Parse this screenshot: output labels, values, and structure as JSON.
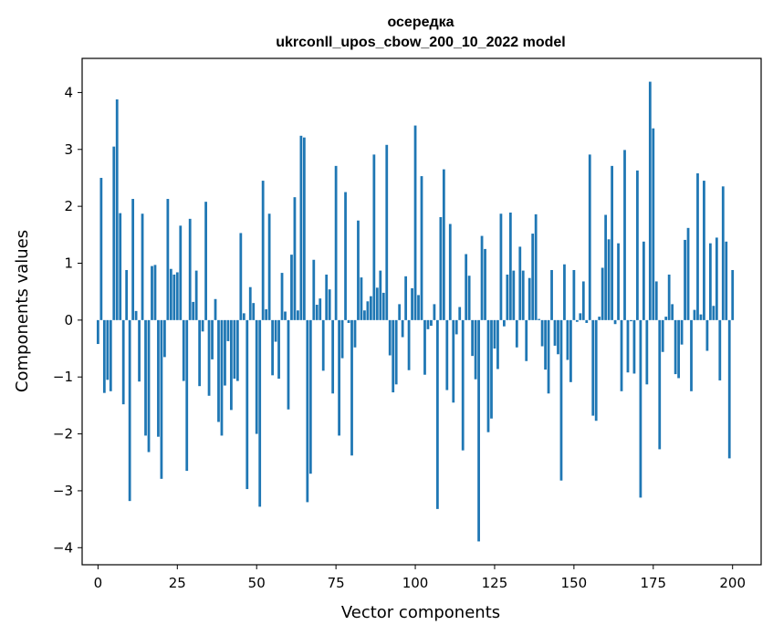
{
  "chart_data": {
    "type": "bar",
    "title": "осередка",
    "subtitle": "ukrconll_upos_cbow_200_10_2022 model",
    "xlabel": "Vector components",
    "ylabel": "Components values",
    "xlim": [
      -5,
      209
    ],
    "ylim": [
      -4.3,
      4.6
    ],
    "xticks": [
      0,
      25,
      50,
      75,
      100,
      125,
      150,
      175,
      200
    ],
    "yticks": [
      -4,
      -3,
      -2,
      -1,
      0,
      1,
      2,
      3,
      4
    ],
    "xtick_labels": [
      "0",
      "25",
      "50",
      "75",
      "100",
      "125",
      "150",
      "175",
      "200"
    ],
    "ytick_labels": [
      "−4",
      "−3",
      "−2",
      "−1",
      "0",
      "1",
      "2",
      "3",
      "4"
    ],
    "grid": false,
    "bar_color": "#1f77b4",
    "values": [
      -0.42,
      2.5,
      -1.28,
      -1.05,
      -1.25,
      3.05,
      3.88,
      1.88,
      -1.48,
      0.88,
      -3.18,
      2.13,
      0.16,
      -1.08,
      1.87,
      -2.03,
      -2.32,
      0.95,
      0.97,
      -2.05,
      -2.79,
      -0.65,
      2.13,
      0.9,
      0.8,
      0.84,
      1.66,
      -1.07,
      -2.65,
      1.78,
      0.32,
      0.87,
      -1.16,
      -0.2,
      2.08,
      -1.33,
      -0.69,
      0.37,
      -1.79,
      -2.03,
      -1.15,
      -0.37,
      -1.58,
      -1.03,
      -1.07,
      1.53,
      0.12,
      -2.97,
      0.58,
      0.3,
      -2.0,
      -3.28,
      2.45,
      0.19,
      1.87,
      -0.97,
      -0.38,
      -1.03,
      0.83,
      0.15,
      -1.57,
      1.15,
      2.16,
      0.17,
      3.24,
      3.21,
      -3.2,
      -2.7,
      1.06,
      0.27,
      0.38,
      -0.89,
      0.8,
      0.54,
      -1.29,
      2.71,
      -2.03,
      -0.67,
      2.25,
      -0.05,
      -2.38,
      -0.48,
      1.75,
      0.75,
      0.17,
      0.33,
      0.42,
      2.91,
      0.57,
      0.87,
      0.48,
      3.08,
      -0.62,
      -1.27,
      -1.13,
      0.28,
      -0.3,
      0.77,
      -0.88,
      0.56,
      3.42,
      0.44,
      2.53,
      -0.96,
      -0.16,
      -0.1,
      0.28,
      -3.32,
      1.81,
      2.65,
      -1.23,
      1.69,
      -1.45,
      -0.25,
      0.23,
      -2.29,
      1.16,
      0.78,
      -0.63,
      -1.04,
      -3.89,
      1.48,
      1.25,
      -1.97,
      -1.73,
      -0.5,
      -0.86,
      1.87,
      -0.11,
      0.8,
      1.89,
      0.87,
      -0.48,
      1.29,
      0.87,
      -0.72,
      0.74,
      1.52,
      1.86,
      0.02,
      -0.46,
      -0.87,
      -1.29,
      0.88,
      -0.45,
      -0.6,
      -2.82,
      0.98,
      -0.7,
      -1.09,
      0.88,
      -0.03,
      0.12,
      0.68,
      -0.05,
      2.91,
      -1.68,
      -1.77,
      0.06,
      0.92,
      1.85,
      1.42,
      2.71,
      -0.07,
      1.35,
      -1.25,
      2.99,
      -0.92,
      -0.02,
      -0.94,
      2.63,
      -3.12,
      1.38,
      -1.13,
      4.19,
      3.37,
      0.68,
      -2.27,
      -0.56,
      0.06,
      0.8,
      0.28,
      -0.95,
      -1.02,
      -0.43,
      1.41,
      1.62,
      -1.25,
      0.18,
      2.58,
      0.1,
      2.45,
      -0.54,
      1.35,
      0.25,
      1.45,
      -1.06,
      2.35,
      1.38,
      -2.43,
      0.88
    ]
  }
}
